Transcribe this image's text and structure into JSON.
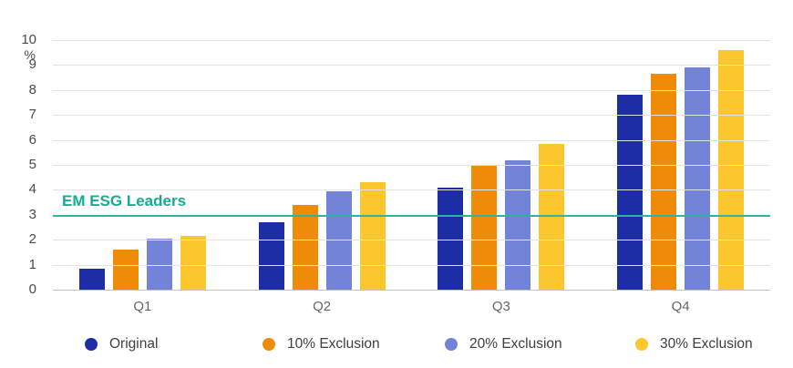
{
  "chart_data": {
    "type": "bar",
    "title": "",
    "ylabel": "%",
    "xlabel": "",
    "ylim": [
      0,
      10
    ],
    "yticks": [
      0,
      1,
      2,
      3,
      4,
      5,
      6,
      7,
      8,
      9,
      10
    ],
    "grid": true,
    "legend_position": "bottom",
    "categories": [
      "Q1",
      "Q2",
      "Q3",
      "Q4"
    ],
    "series": [
      {
        "name": "Original",
        "color": "#1d2da6",
        "values": [
          0.85,
          2.7,
          4.1,
          7.8
        ]
      },
      {
        "name": "10% Exclusion",
        "color": "#ee8c0a",
        "values": [
          1.6,
          3.4,
          4.95,
          8.65
        ]
      },
      {
        "name": "20% Exclusion",
        "color": "#7384d8",
        "values": [
          2.05,
          3.95,
          5.2,
          8.9
        ]
      },
      {
        "name": "30% Exclusion",
        "color": "#fbc72d",
        "values": [
          2.15,
          4.3,
          5.85,
          9.6
        ]
      }
    ],
    "reference_line": {
      "label": "EM ESG Leaders",
      "value": 2.95,
      "line_color": "#2bb3a4",
      "label_color": "#17ab94"
    }
  }
}
